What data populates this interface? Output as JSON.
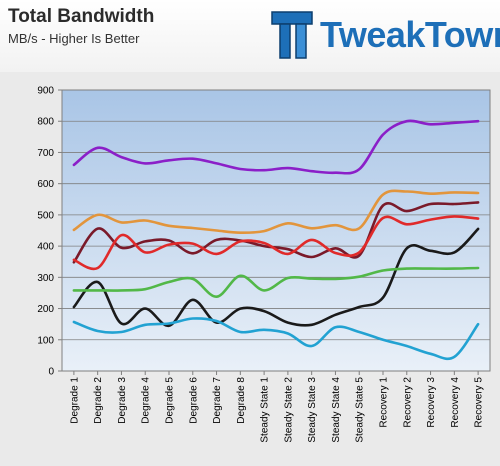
{
  "header": {
    "title": "Total Bandwidth",
    "subtitle": "MB/s - Higher Is Better",
    "logo_text": "TweakTown"
  },
  "chart_data": {
    "type": "line",
    "title": "Total Bandwidth",
    "subtitle": "MB/s - Higher Is Better",
    "xlabel": "",
    "ylabel": "",
    "ylim": [
      0,
      900
    ],
    "yticks": [
      0,
      100,
      200,
      300,
      400,
      500,
      600,
      700,
      800,
      900
    ],
    "grid": true,
    "legend": "none",
    "categories": [
      "Degrade 1",
      "Degrade 2",
      "Degrade 3",
      "Degrade 4",
      "Degrade 5",
      "Degrade 6",
      "Degrade 7",
      "Degrade 8",
      "Steady State 1",
      "Steady State 2",
      "Steady State 3",
      "Steady State 4",
      "Steady State 5",
      "Recovery 1",
      "Recovery 2",
      "Recovery 3",
      "Recovery 4",
      "Recovery 5"
    ],
    "series": [
      {
        "color": "#8b1fc8",
        "values": [
          660,
          715,
          685,
          665,
          675,
          680,
          665,
          647,
          643,
          650,
          640,
          635,
          646,
          757,
          800,
          790,
          795,
          800
        ]
      },
      {
        "color": "#e2953c",
        "values": [
          452,
          500,
          476,
          482,
          465,
          458,
          450,
          443,
          448,
          473,
          457,
          467,
          457,
          565,
          575,
          568,
          572,
          570
        ]
      },
      {
        "color": "#7a1a2a",
        "values": [
          348,
          456,
          395,
          415,
          418,
          377,
          420,
          418,
          400,
          390,
          365,
          393,
          370,
          530,
          512,
          535,
          535,
          540
        ]
      },
      {
        "color": "#e02a2a",
        "values": [
          356,
          330,
          435,
          380,
          405,
          408,
          375,
          415,
          410,
          375,
          420,
          378,
          380,
          490,
          470,
          485,
          495,
          488
        ]
      },
      {
        "color": "#1a1a1a",
        "values": [
          205,
          285,
          152,
          200,
          145,
          228,
          155,
          200,
          192,
          155,
          148,
          180,
          205,
          235,
          393,
          385,
          380,
          455
        ]
      },
      {
        "color": "#52b848",
        "values": [
          258,
          258,
          258,
          262,
          285,
          295,
          238,
          305,
          258,
          298,
          296,
          295,
          302,
          322,
          328,
          328,
          328,
          330
        ]
      },
      {
        "color": "#22a2d2",
        "values": [
          157,
          128,
          125,
          148,
          152,
          168,
          160,
          125,
          132,
          120,
          80,
          140,
          125,
          100,
          80,
          55,
          45,
          150
        ]
      }
    ]
  }
}
